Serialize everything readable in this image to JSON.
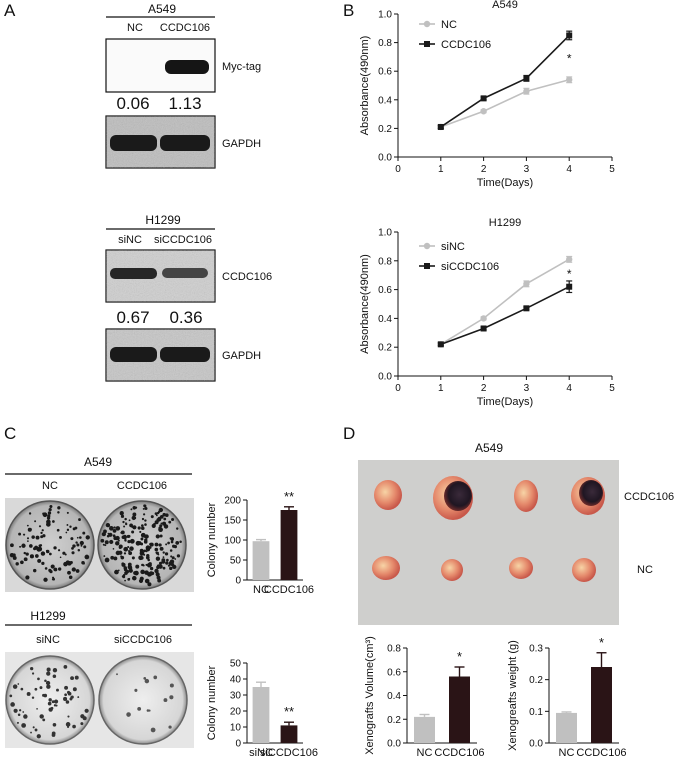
{
  "panels": {
    "a": "A",
    "b": "B",
    "c": "C",
    "d": "D"
  },
  "blotA": {
    "cell": "A549",
    "lanes": [
      "NC",
      "CCDC106"
    ],
    "band1": "Myc-tag",
    "band2": "GAPDH",
    "quant": [
      "0.06",
      "1.13"
    ]
  },
  "blotH": {
    "cell": "H1299",
    "lanes": [
      "siNC",
      "siCCDC106"
    ],
    "band1": "CCDC106",
    "band2": "GAPDH",
    "quant": [
      "0.67",
      "0.36"
    ]
  },
  "colonyA": {
    "cell": "A549",
    "lanes": [
      "NC",
      "CCDC106"
    ]
  },
  "colonyH": {
    "cell": "H1299",
    "lanes": [
      "siNC",
      "siCCDC106"
    ]
  },
  "xeno": {
    "cell": "A549",
    "row1": "CCDC106",
    "row2": "NC"
  },
  "chart_data": [
    {
      "id": "b1",
      "type": "line",
      "title": "A549",
      "xlabel": "Time(Days)",
      "ylabel": "Absorbance(490nm)",
      "xlim": [
        0,
        5
      ],
      "ylim": [
        0,
        1.0
      ],
      "xticks": [
        0,
        1,
        2,
        3,
        4,
        5
      ],
      "yticks": [
        0,
        0.2,
        0.4,
        0.6,
        0.8,
        1.0
      ],
      "x": [
        1,
        2,
        3,
        4
      ],
      "legend": "top-left",
      "annotation": "*",
      "series": [
        {
          "name": "NC",
          "color": "#c0c0c0",
          "values": [
            0.21,
            0.32,
            0.46,
            0.54
          ],
          "err": [
            0.01,
            0.01,
            0.02,
            0.02
          ]
        },
        {
          "name": "CCDC106",
          "color": "#1a1a1a",
          "values": [
            0.21,
            0.41,
            0.55,
            0.85
          ],
          "err": [
            0.01,
            0.01,
            0.02,
            0.03
          ]
        }
      ]
    },
    {
      "id": "b2",
      "type": "line",
      "title": "H1299",
      "xlabel": "Time(Days)",
      "ylabel": "Absorbance(490nm)",
      "xlim": [
        0,
        5
      ],
      "ylim": [
        0,
        1.0
      ],
      "xticks": [
        0,
        1,
        2,
        3,
        4,
        5
      ],
      "yticks": [
        0,
        0.2,
        0.4,
        0.6,
        0.8,
        1.0
      ],
      "x": [
        1,
        2,
        3,
        4
      ],
      "legend": "top-left",
      "annotation": "*",
      "series": [
        {
          "name": "siNC",
          "color": "#c0c0c0",
          "values": [
            0.22,
            0.4,
            0.64,
            0.81
          ],
          "err": [
            0.01,
            0.01,
            0.02,
            0.02
          ]
        },
        {
          "name": "siCCDC106",
          "color": "#1a1a1a",
          "values": [
            0.22,
            0.33,
            0.47,
            0.62
          ],
          "err": [
            0.01,
            0.01,
            0.01,
            0.04
          ]
        }
      ]
    },
    {
      "id": "c1",
      "type": "bar",
      "ylabel": "Colony number",
      "categories": [
        "NC",
        "CCDC106"
      ],
      "values": [
        97,
        175
      ],
      "err": [
        4,
        8
      ],
      "ylim": [
        0,
        200
      ],
      "yticks": [
        0,
        50,
        100,
        150,
        200
      ],
      "colors": [
        "#c0c0c0",
        "#2a1416"
      ],
      "annotation": "**"
    },
    {
      "id": "c2",
      "type": "bar",
      "ylabel": "Colony number",
      "categories": [
        "siNC",
        "siCCDC106"
      ],
      "values": [
        35,
        11
      ],
      "err": [
        3,
        2
      ],
      "ylim": [
        0,
        50
      ],
      "yticks": [
        0,
        10,
        20,
        30,
        40,
        50
      ],
      "colors": [
        "#c0c0c0",
        "#2a1416"
      ],
      "annotation": "**"
    },
    {
      "id": "d1",
      "type": "bar",
      "ylabel": "Xenografts Volume(cm³)",
      "categories": [
        "NC",
        "CCDC106"
      ],
      "values": [
        0.22,
        0.56
      ],
      "err": [
        0.02,
        0.08
      ],
      "ylim": [
        0,
        0.8
      ],
      "yticks": [
        "0.0",
        "0.2",
        "0.4",
        "0.6",
        "0.8"
      ],
      "colors": [
        "#c0c0c0",
        "#2a1416"
      ],
      "annotation": "*"
    },
    {
      "id": "d2",
      "type": "bar",
      "ylabel": "Xenogreafts weight (g)",
      "categories": [
        "NC",
        "CCDC106"
      ],
      "values": [
        0.095,
        0.24
      ],
      "err": [
        0.003,
        0.045
      ],
      "ylim": [
        0,
        0.3
      ],
      "yticks": [
        "0.0",
        "0.1",
        "0.2",
        "0.3"
      ],
      "colors": [
        "#c0c0c0",
        "#2a1416"
      ],
      "annotation": "*"
    }
  ]
}
